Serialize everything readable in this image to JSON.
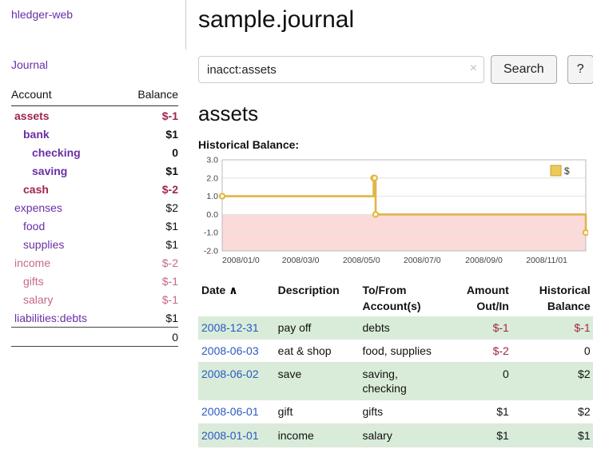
{
  "sidebar": {
    "app_title": "hledger-web",
    "journal_label": "Journal",
    "headers": {
      "account": "Account",
      "balance": "Balance"
    },
    "accounts": [
      {
        "name": "assets",
        "balance": "$-1",
        "indent": 1,
        "bold": true
      },
      {
        "name": "bank",
        "balance": "$1",
        "indent": 2,
        "bold": true
      },
      {
        "name": "checking",
        "balance": "0",
        "indent": 3,
        "bold": true
      },
      {
        "name": "saving",
        "balance": "$1",
        "indent": 3,
        "bold": true
      },
      {
        "name": "cash",
        "balance": "$-2",
        "indent": 2,
        "bold": true
      },
      {
        "name": "expenses",
        "balance": "$2",
        "indent": 1,
        "bold": false
      },
      {
        "name": "food",
        "balance": "$1",
        "indent": 2,
        "bold": false
      },
      {
        "name": "supplies",
        "balance": "$1",
        "indent": 2,
        "bold": false
      },
      {
        "name": "income",
        "balance": "$-2",
        "indent": 1,
        "bold": false
      },
      {
        "name": "gifts",
        "balance": "$-1",
        "indent": 2,
        "bold": false
      },
      {
        "name": "salary",
        "balance": "$-1",
        "indent": 2,
        "bold": false
      },
      {
        "name": "liabilities:debts",
        "balance": "$1",
        "indent": 1,
        "bold": false
      }
    ],
    "total": "0"
  },
  "main": {
    "title": "sample.journal",
    "search": {
      "value": "inacct:assets",
      "clear_icon": "×",
      "button_label": "Search",
      "help_label": "?"
    },
    "account_heading": "assets",
    "chart_label": "Historical Balance:"
  },
  "chart_data": {
    "type": "line",
    "step": true,
    "title": "Historical Balance",
    "legend_label": "$",
    "ylim": [
      -2.0,
      3.0
    ],
    "yticks": [
      3.0,
      2.0,
      1.0,
      0.0,
      -1.0,
      -2.0
    ],
    "xticks": [
      {
        "label": "2008/01/0",
        "date": "2008-01-01"
      },
      {
        "label": "2008/03/0",
        "date": "2008-03-01"
      },
      {
        "label": "2008/05/0",
        "date": "2008-05-01"
      },
      {
        "label": "2008/07/0",
        "date": "2008-07-01"
      },
      {
        "label": "2008/09/0",
        "date": "2008-09-01"
      },
      {
        "label": "2008/11/01",
        "date": "2008-11-01"
      }
    ],
    "points": [
      {
        "date": "2008-01-01",
        "value": 1
      },
      {
        "date": "2008-06-01",
        "value": 2
      },
      {
        "date": "2008-06-02",
        "value": 2
      },
      {
        "date": "2008-06-03",
        "value": 0
      },
      {
        "date": "2008-12-31",
        "value": -1
      }
    ],
    "colors": {
      "line": "#e1b546",
      "point_fill": "#fdf6dd",
      "negative_region": "#fbdada",
      "legend_fill": "#edc95d",
      "legend_border": "#c9a12c"
    }
  },
  "register": {
    "headers": [
      {
        "lines": [
          "Date"
        ],
        "sort_icon": "∧"
      },
      {
        "lines": [
          "Description"
        ]
      },
      {
        "lines": [
          "To/From",
          "Account(s)"
        ]
      },
      {
        "lines": [
          "Amount",
          "Out/In"
        ]
      },
      {
        "lines": [
          "Historical",
          "Balance"
        ]
      }
    ],
    "rows": [
      {
        "date": "2008-12-31",
        "description": "pay off",
        "accounts": "debts",
        "amount": "$-1",
        "balance": "$-1"
      },
      {
        "date": "2008-06-03",
        "description": "eat & shop",
        "accounts": "food, supplies",
        "amount": "$-2",
        "balance": "0"
      },
      {
        "date": "2008-06-02",
        "description": "save",
        "accounts": "saving, checking",
        "amount": "0",
        "balance": "$2"
      },
      {
        "date": "2008-06-01",
        "description": "gift",
        "accounts": "gifts",
        "amount": "$1",
        "balance": "$2"
      },
      {
        "date": "2008-01-01",
        "description": "income",
        "accounts": "salary",
        "amount": "$1",
        "balance": "$1"
      }
    ]
  },
  "colors": {
    "link_purple": "#6a2fa5",
    "negative_strong": "#a0254e",
    "negative_light": "#c46a85",
    "date_link_blue": "#2b59c3",
    "row_highlight_green": "#d9ecd9"
  }
}
